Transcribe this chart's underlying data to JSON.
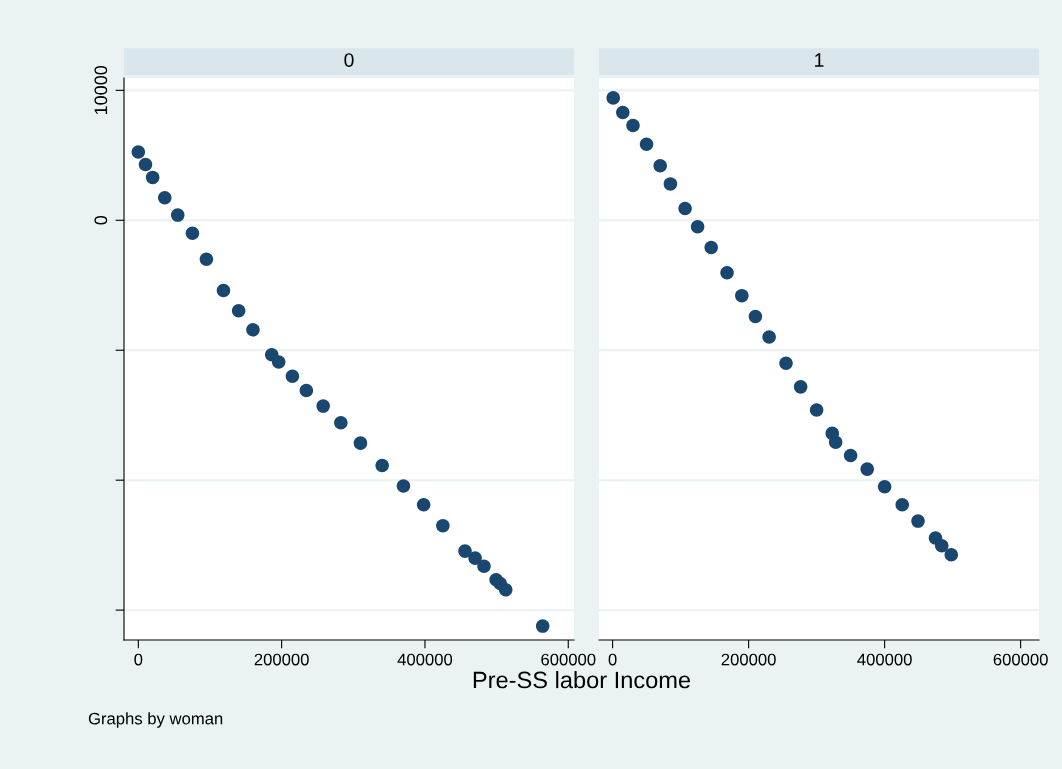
{
  "chart_data": [
    {
      "type": "scatter",
      "title": "0",
      "xlabel": "Pre-SS labor Income",
      "annotations": [
        "Graphs by woman"
      ],
      "marker": "circle",
      "grid": "y",
      "xlim": [
        -20000,
        608000
      ],
      "xticks": [
        0,
        200000,
        400000,
        600000
      ],
      "ylim": [
        -32300,
        10950
      ],
      "yticks": [
        10000,
        0,
        {
          "value": -10000,
          "label": null
        },
        {
          "value": -20000,
          "label": null
        },
        {
          "value": -30000,
          "label": null
        }
      ],
      "series": [
        {
          "color": "#1a476f",
          "x": [
            0,
            10000,
            20000,
            36900,
            55000,
            75500,
            95000,
            118800,
            140000,
            160000,
            186200,
            195900,
            215000,
            234500,
            258000,
            282600,
            310000,
            340300,
            370000,
            398200,
            425000,
            455900,
            470000,
            482400,
            499300,
            505000,
            512700,
            564300
          ],
          "values": [
            5250,
            4300,
            3300,
            1730,
            400,
            -1000,
            -3000,
            -5410,
            -6960,
            -8430,
            -10350,
            -10900,
            -12000,
            -13100,
            -14300,
            -15580,
            -17150,
            -18870,
            -20450,
            -21890,
            -23500,
            -25460,
            -26000,
            -26620,
            -27660,
            -27950,
            -28430,
            -31230
          ]
        }
      ]
    },
    {
      "type": "scatter",
      "title": "1",
      "marker": "circle",
      "grid": "y",
      "tick_labels": "x",
      "xlim": [
        -20000,
        627000
      ],
      "xticks": [
        0,
        200000,
        400000,
        600000
      ],
      "ylim": [
        -32300,
        10950
      ],
      "yticks": [
        10000,
        0,
        -10000,
        -20000,
        -30000
      ],
      "series": [
        {
          "color": "#1a476f",
          "x": [
            900,
            15000,
            30000,
            49900,
            70000,
            85000,
            106600,
            125000,
            145000,
            168300,
            190000,
            210000,
            230200,
            255000,
            276500,
            300000,
            323000,
            328000,
            350000,
            374400,
            400000,
            425900,
            449100,
            474800,
            484000,
            498000
          ],
          "values": [
            9420,
            8300,
            7300,
            5850,
            4200,
            2800,
            910,
            -500,
            -2100,
            -4040,
            -5800,
            -7400,
            -8980,
            -11000,
            -12820,
            -14600,
            -16400,
            -17080,
            -18100,
            -19150,
            -20500,
            -21890,
            -23150,
            -24450,
            -25050,
            -25740
          ]
        }
      ]
    }
  ]
}
